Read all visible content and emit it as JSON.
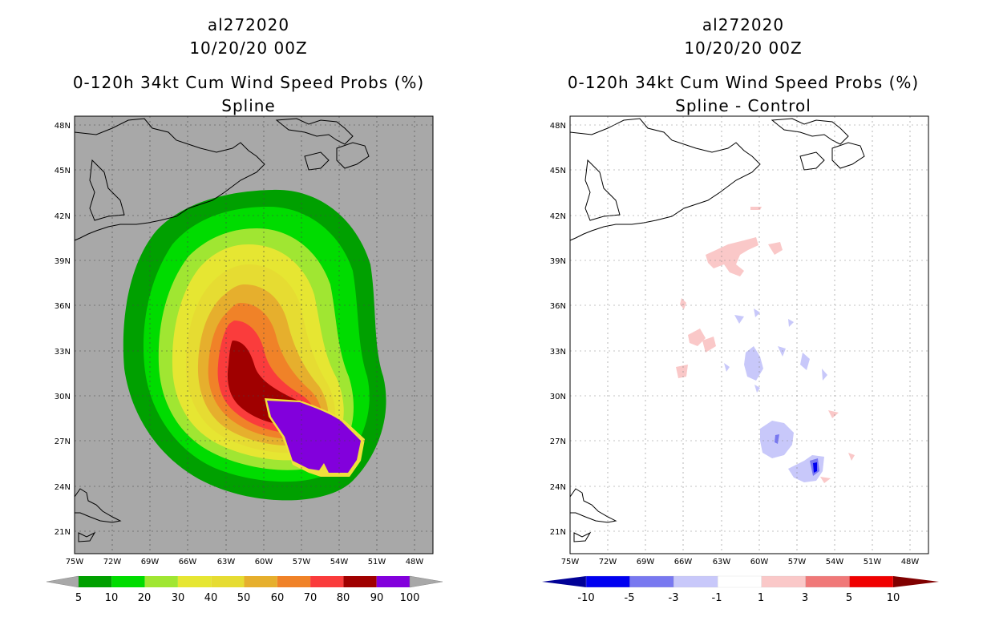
{
  "left": {
    "storm_id": "al272020",
    "datetime": "10/20/20 00Z",
    "product": "0-120h 34kt Cum Wind Speed Probs (%)",
    "subtitle": "Spline",
    "legend_labels": [
      "5",
      "10",
      "20",
      "30",
      "40",
      "50",
      "60",
      "70",
      "80",
      "90",
      "100"
    ],
    "legend_colors": [
      "#00a000",
      "#00dc00",
      "#a0e632",
      "#e6e632",
      "#e6dc32",
      "#e6af2d",
      "#f08228",
      "#fa3c3c",
      "#a00000",
      "#8200dc"
    ],
    "background_color": "#a8a8a8"
  },
  "right": {
    "storm_id": "al272020",
    "datetime": "10/20/20 00Z",
    "product": "0-120h 34kt Cum Wind Speed Probs (%)",
    "subtitle": "Spline - Control",
    "legend_labels": [
      "-10",
      "-5",
      "-3",
      "-1",
      "1",
      "3",
      "5",
      "10"
    ],
    "legend_colors": [
      "#000096",
      "#0000f0",
      "#7878f0",
      "#c8c8fa",
      "#ffffff",
      "#fac8c8",
      "#f07878",
      "#f00000",
      "#800000"
    ],
    "background_color": "#ffffff"
  },
  "axes": {
    "lat_labels": [
      "48N",
      "45N",
      "42N",
      "39N",
      "36N",
      "33N",
      "30N",
      "27N",
      "24N",
      "21N"
    ],
    "lon_labels": [
      "75W",
      "72W",
      "69W",
      "66W",
      "63W",
      "60W",
      "57W",
      "54W",
      "51W",
      "48W"
    ]
  }
}
